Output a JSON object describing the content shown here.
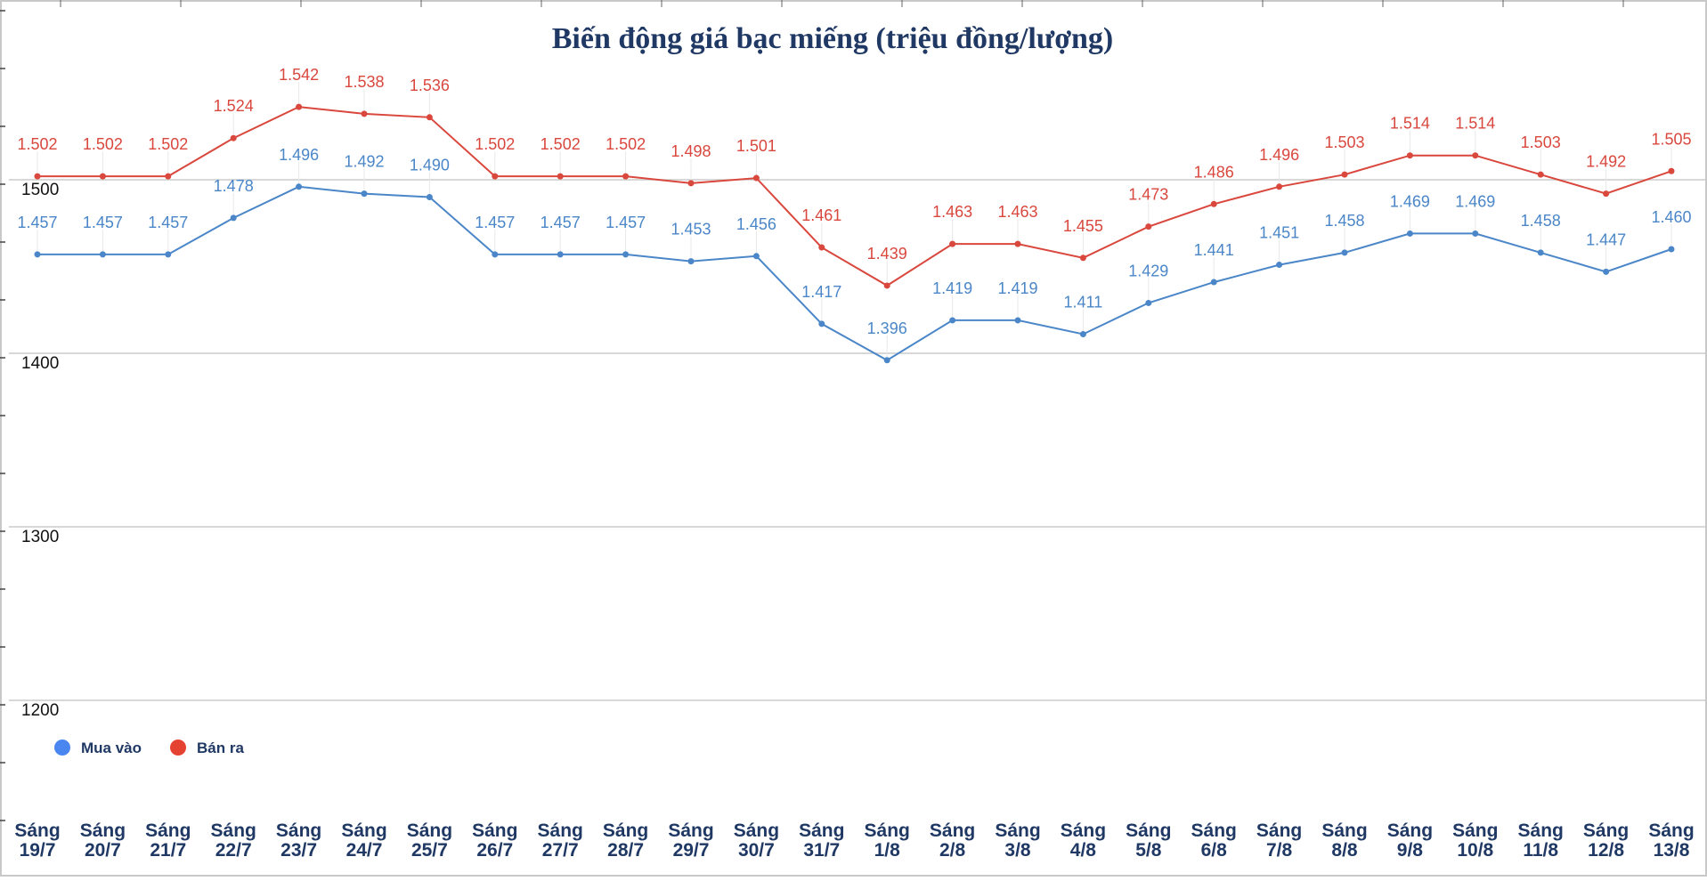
{
  "chart_data": {
    "type": "line",
    "title": "Biến động giá bạc miếng (triệu đồng/lượng)",
    "xlabel": "",
    "ylabel": "",
    "ylim": [
      1100,
      1600
    ],
    "yticks": [
      "1500",
      "1400",
      "1300",
      "1200"
    ],
    "grid": true,
    "legend_position": "bottom-left",
    "categories": [
      [
        "Sáng",
        "19/7"
      ],
      [
        "Sáng",
        "20/7"
      ],
      [
        "Sáng",
        "21/7"
      ],
      [
        "Sáng",
        "22/7"
      ],
      [
        "Sáng",
        "23/7"
      ],
      [
        "Sáng",
        "24/7"
      ],
      [
        "Sáng",
        "25/7"
      ],
      [
        "Sáng",
        "26/7"
      ],
      [
        "Sáng",
        "27/7"
      ],
      [
        "Sáng",
        "28/7"
      ],
      [
        "Sáng",
        "29/7"
      ],
      [
        "Sáng",
        "30/7"
      ],
      [
        "Sáng",
        "31/7"
      ],
      [
        "Sáng",
        "1/8"
      ],
      [
        "Sáng",
        "2/8"
      ],
      [
        "Sáng",
        "3/8"
      ],
      [
        "Sáng",
        "4/8"
      ],
      [
        "Sáng",
        "5/8"
      ],
      [
        "Sáng",
        "6/8"
      ],
      [
        "Sáng",
        "7/8"
      ],
      [
        "Sáng",
        "8/8"
      ],
      [
        "Sáng",
        "9/8"
      ],
      [
        "Sáng",
        "10/8"
      ],
      [
        "Sáng",
        "11/8"
      ],
      [
        "Sáng",
        "12/8"
      ],
      [
        "Sáng",
        "13/8"
      ]
    ],
    "series": [
      {
        "name": "Mua vào",
        "color": "#4a86c8",
        "values": [
          1457,
          1457,
          1457,
          1478,
          1496,
          1492,
          1490,
          1457,
          1457,
          1457,
          1453,
          1456,
          1417,
          1396,
          1419,
          1419,
          1411,
          1429,
          1441,
          1451,
          1458,
          1469,
          1469,
          1458,
          1447,
          1460
        ],
        "labels": [
          "1.457",
          "1.457",
          "1.457",
          "1.478",
          "1.496",
          "1.492",
          "1.490",
          "1.457",
          "1.457",
          "1.457",
          "1.453",
          "1.456",
          "1.417",
          "1.396",
          "1.419",
          "1.419",
          "1.411",
          "1.429",
          "1.441",
          "1.451",
          "1.458",
          "1.469",
          "1.469",
          "1.458",
          "1.447",
          "1.460"
        ]
      },
      {
        "name": "Bán ra",
        "color": "#d9473d",
        "values": [
          1502,
          1502,
          1502,
          1524,
          1542,
          1538,
          1536,
          1502,
          1502,
          1502,
          1498,
          1501,
          1461,
          1439,
          1463,
          1463,
          1455,
          1473,
          1486,
          1496,
          1503,
          1514,
          1514,
          1503,
          1492,
          1505
        ],
        "labels": [
          "1.502",
          "1.502",
          "1.502",
          "1.524",
          "1.542",
          "1.538",
          "1.536",
          "1.502",
          "1.502",
          "1.502",
          "1.498",
          "1.501",
          "1.461",
          "1.439",
          "1.463",
          "1.463",
          "1.455",
          "1.473",
          "1.486",
          "1.496",
          "1.503",
          "1.514",
          "1.514",
          "1.503",
          "1.492",
          "1.505"
        ]
      }
    ],
    "legend_marker_colors": [
      "#4a86f0",
      "#e64232"
    ]
  }
}
